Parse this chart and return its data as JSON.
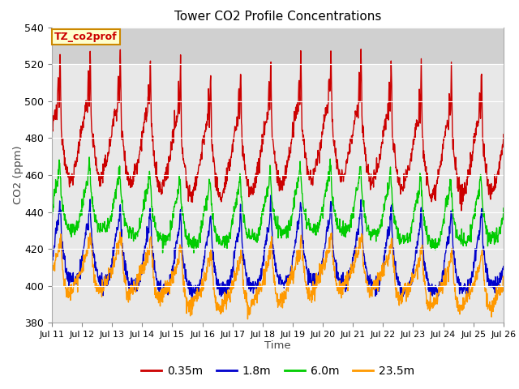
{
  "title": "Tower CO2 Profile Concentrations",
  "xlabel": "Time",
  "ylabel": "CO2 (ppm)",
  "ylim": [
    380,
    540
  ],
  "yticks": [
    380,
    400,
    420,
    440,
    460,
    480,
    500,
    520,
    540
  ],
  "x_labels": [
    "Jul 11",
    "Jul 12",
    "Jul 13",
    "Jul 14",
    "Jul 15",
    "Jul 16",
    "Jul 17",
    "Jul 18",
    "Jul 19",
    "Jul 20",
    "Jul 21",
    "Jul 22",
    "Jul 23",
    "Jul 24",
    "Jul 25",
    "Jul 26"
  ],
  "series": {
    "0.35m": {
      "color": "#cc0000",
      "lw": 1.0
    },
    "1.8m": {
      "color": "#0000cc",
      "lw": 1.0
    },
    "6.0m": {
      "color": "#00cc00",
      "lw": 1.0
    },
    "23.5m": {
      "color": "#ff9900",
      "lw": 1.0
    }
  },
  "annotation_text": "TZ_co2prof",
  "annotation_color": "#cc0000",
  "annotation_bg": "#ffffcc",
  "annotation_border": "#cc8800",
  "plot_bg": "#e8e8e8",
  "upper_bg": "#d0d0d0",
  "grid_color": "#ffffff"
}
